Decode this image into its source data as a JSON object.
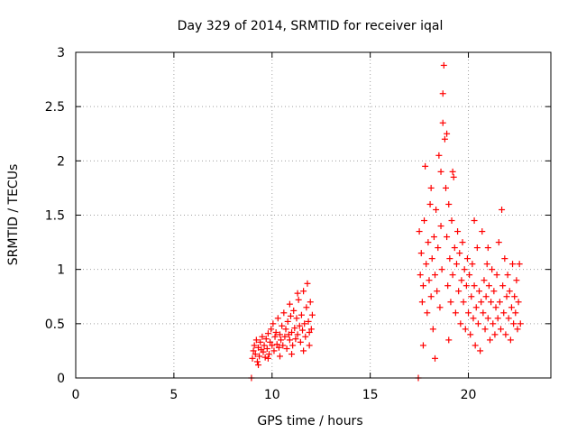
{
  "chart_data": {
    "type": "scatter",
    "title": "Day 329 of 2014, SRMTID for receiver iqal",
    "xlabel": "GPS time / hours",
    "ylabel": "SRMTID / TECUs",
    "xlim": [
      0,
      24.2
    ],
    "ylim": [
      0,
      3
    ],
    "xticks": [
      "0",
      "5",
      "10",
      "15",
      "20"
    ],
    "yticks": [
      "0",
      "0.5",
      "1",
      "1.5",
      "2",
      "2.5",
      "3"
    ],
    "grid": true,
    "marker": "+",
    "color": "#ff0000",
    "series": [
      {
        "name": "SRMTID",
        "points": [
          [
            8.95,
            0.0
          ],
          [
            17.45,
            0.0
          ],
          [
            9.0,
            0.18
          ],
          [
            9.05,
            0.25
          ],
          [
            9.1,
            0.3
          ],
          [
            9.15,
            0.22
          ],
          [
            9.2,
            0.35
          ],
          [
            9.25,
            0.15
          ],
          [
            9.3,
            0.28
          ],
          [
            9.35,
            0.2
          ],
          [
            9.4,
            0.33
          ],
          [
            9.45,
            0.26
          ],
          [
            9.5,
            0.38
          ],
          [
            9.55,
            0.24
          ],
          [
            9.6,
            0.3
          ],
          [
            9.65,
            0.19
          ],
          [
            9.7,
            0.36
          ],
          [
            9.75,
            0.27
          ],
          [
            9.8,
            0.41
          ],
          [
            9.85,
            0.22
          ],
          [
            9.9,
            0.33
          ],
          [
            9.95,
            0.45
          ],
          [
            10.0,
            0.3
          ],
          [
            10.05,
            0.5
          ],
          [
            10.1,
            0.25
          ],
          [
            10.15,
            0.38
          ],
          [
            10.2,
            0.42
          ],
          [
            10.25,
            0.31
          ],
          [
            10.3,
            0.55
          ],
          [
            10.35,
            0.28
          ],
          [
            10.4,
            0.4
          ],
          [
            10.45,
            0.35
          ],
          [
            10.5,
            0.48
          ],
          [
            10.55,
            0.3
          ],
          [
            10.6,
            0.6
          ],
          [
            10.65,
            0.38
          ],
          [
            10.7,
            0.45
          ],
          [
            10.75,
            0.27
          ],
          [
            10.8,
            0.52
          ],
          [
            10.85,
            0.4
          ],
          [
            10.9,
            0.35
          ],
          [
            10.95,
            0.57
          ],
          [
            11.0,
            0.42
          ],
          [
            11.05,
            0.3
          ],
          [
            11.1,
            0.62
          ],
          [
            11.15,
            0.46
          ],
          [
            11.2,
            0.36
          ],
          [
            11.25,
            0.55
          ],
          [
            11.3,
            0.4
          ],
          [
            11.35,
            0.72
          ],
          [
            11.4,
            0.48
          ],
          [
            11.45,
            0.33
          ],
          [
            11.5,
            0.58
          ],
          [
            11.55,
            0.44
          ],
          [
            11.6,
            0.8
          ],
          [
            11.65,
            0.5
          ],
          [
            11.7,
            0.38
          ],
          [
            11.75,
            0.65
          ],
          [
            11.8,
            0.87
          ],
          [
            11.85,
            0.52
          ],
          [
            11.9,
            0.42
          ],
          [
            11.95,
            0.7
          ],
          [
            12.0,
            0.45
          ],
          [
            12.05,
            0.58
          ],
          [
            9.3,
            0.12
          ],
          [
            9.8,
            0.18
          ],
          [
            10.4,
            0.2
          ],
          [
            11.0,
            0.22
          ],
          [
            11.6,
            0.25
          ],
          [
            11.9,
            0.3
          ],
          [
            10.9,
            0.68
          ],
          [
            11.3,
            0.78
          ],
          [
            17.5,
            1.35
          ],
          [
            17.55,
            0.95
          ],
          [
            17.6,
            1.15
          ],
          [
            17.65,
            0.7
          ],
          [
            17.7,
            0.85
          ],
          [
            17.75,
            1.45
          ],
          [
            17.8,
            1.95
          ],
          [
            17.85,
            1.05
          ],
          [
            17.9,
            0.6
          ],
          [
            17.95,
            1.25
          ],
          [
            18.0,
            0.9
          ],
          [
            18.05,
            1.6
          ],
          [
            18.1,
            0.75
          ],
          [
            18.15,
            1.1
          ],
          [
            18.2,
            0.45
          ],
          [
            18.25,
            1.3
          ],
          [
            18.3,
            0.95
          ],
          [
            18.35,
            1.55
          ],
          [
            18.4,
            0.8
          ],
          [
            18.45,
            1.2
          ],
          [
            18.5,
            2.05
          ],
          [
            18.55,
            0.65
          ],
          [
            18.6,
            1.4
          ],
          [
            18.65,
            1.0
          ],
          [
            18.7,
            2.35
          ],
          [
            18.75,
            2.88
          ],
          [
            18.8,
            2.2
          ],
          [
            18.85,
            1.75
          ],
          [
            18.9,
            1.3
          ],
          [
            18.95,
            0.85
          ],
          [
            19.0,
            1.6
          ],
          [
            19.05,
            1.1
          ],
          [
            19.1,
            0.7
          ],
          [
            19.15,
            1.45
          ],
          [
            19.2,
            0.95
          ],
          [
            19.25,
            1.85
          ],
          [
            19.3,
            1.2
          ],
          [
            19.35,
            0.6
          ],
          [
            19.4,
            1.05
          ],
          [
            19.45,
            1.35
          ],
          [
            19.5,
            0.8
          ],
          [
            19.55,
            1.15
          ],
          [
            19.6,
            0.5
          ],
          [
            19.65,
            0.9
          ],
          [
            19.7,
            1.25
          ],
          [
            19.75,
            0.7
          ],
          [
            19.8,
            1.0
          ],
          [
            19.85,
            0.45
          ],
          [
            19.9,
            0.85
          ],
          [
            19.95,
            1.1
          ],
          [
            20.0,
            0.6
          ],
          [
            20.05,
            0.95
          ],
          [
            20.1,
            0.4
          ],
          [
            20.15,
            0.75
          ],
          [
            20.2,
            1.05
          ],
          [
            20.25,
            0.55
          ],
          [
            20.3,
            0.85
          ],
          [
            20.35,
            0.3
          ],
          [
            20.4,
            0.65
          ],
          [
            20.45,
            1.2
          ],
          [
            20.5,
            0.5
          ],
          [
            20.55,
            0.8
          ],
          [
            20.6,
            0.25
          ],
          [
            20.65,
            0.7
          ],
          [
            20.7,
            1.35
          ],
          [
            20.75,
            0.6
          ],
          [
            20.8,
            0.9
          ],
          [
            20.85,
            0.45
          ],
          [
            20.9,
            0.75
          ],
          [
            20.95,
            1.05
          ],
          [
            21.0,
            0.55
          ],
          [
            21.05,
            0.85
          ],
          [
            21.1,
            0.35
          ],
          [
            21.15,
            0.7
          ],
          [
            21.2,
            1.0
          ],
          [
            21.25,
            0.5
          ],
          [
            21.3,
            0.8
          ],
          [
            21.35,
            0.4
          ],
          [
            21.4,
            0.65
          ],
          [
            21.45,
            0.95
          ],
          [
            21.5,
            0.55
          ],
          [
            21.55,
            1.25
          ],
          [
            21.6,
            0.7
          ],
          [
            21.65,
            0.45
          ],
          [
            21.7,
            1.55
          ],
          [
            21.75,
            0.85
          ],
          [
            21.8,
            0.6
          ],
          [
            21.85,
            1.1
          ],
          [
            21.9,
            0.4
          ],
          [
            21.95,
            0.75
          ],
          [
            22.0,
            0.95
          ],
          [
            22.05,
            0.55
          ],
          [
            22.1,
            0.8
          ],
          [
            22.15,
            0.35
          ],
          [
            22.2,
            0.65
          ],
          [
            22.25,
            1.05
          ],
          [
            22.3,
            0.5
          ],
          [
            22.35,
            0.75
          ],
          [
            22.4,
            0.6
          ],
          [
            22.45,
            0.9
          ],
          [
            22.5,
            0.45
          ],
          [
            22.55,
            0.7
          ],
          [
            22.6,
            1.05
          ],
          [
            22.65,
            0.5
          ],
          [
            18.3,
            0.18
          ],
          [
            17.7,
            0.3
          ],
          [
            18.1,
            1.75
          ],
          [
            19.2,
            1.9
          ],
          [
            18.7,
            2.62
          ],
          [
            18.6,
            1.9
          ],
          [
            18.9,
            2.25
          ],
          [
            19.0,
            0.35
          ],
          [
            20.3,
            1.45
          ],
          [
            21.0,
            1.2
          ]
        ]
      }
    ]
  }
}
